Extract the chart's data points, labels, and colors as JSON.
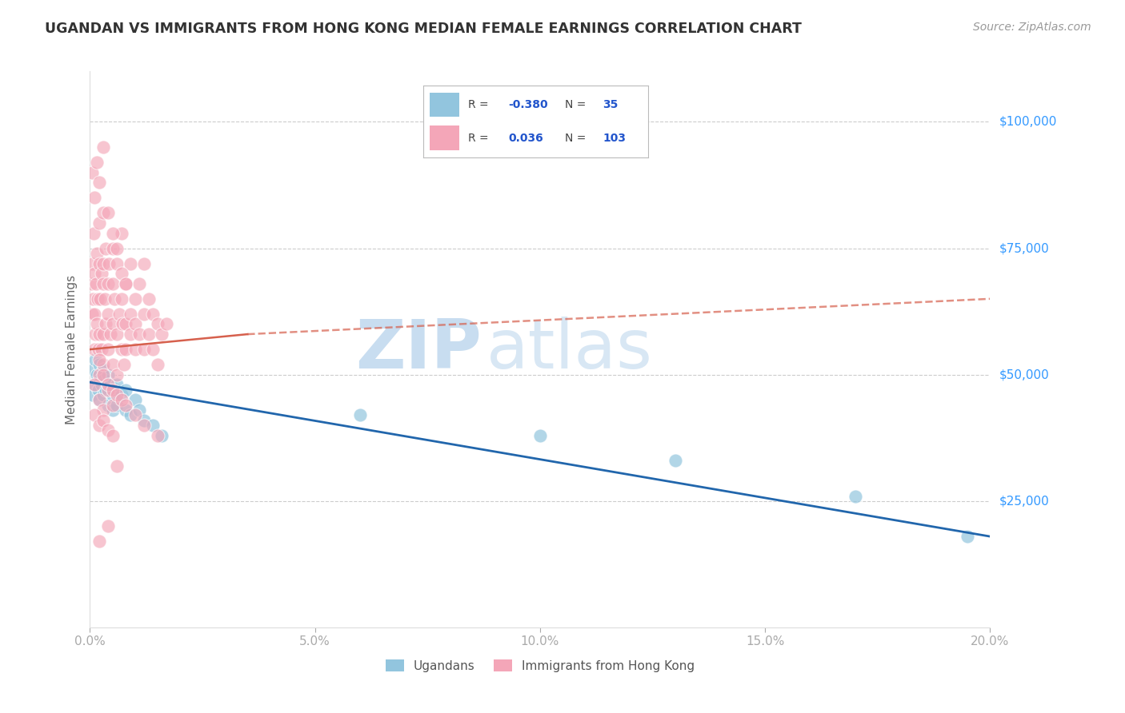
{
  "title": "UGANDAN VS IMMIGRANTS FROM HONG KONG MEDIAN FEMALE EARNINGS CORRELATION CHART",
  "source": "Source: ZipAtlas.com",
  "ylabel": "Median Female Earnings",
  "xlim": [
    0.0,
    0.2
  ],
  "ylim": [
    0,
    110000
  ],
  "legend_blue_R": "-0.380",
  "legend_blue_N": "35",
  "legend_pink_R": "0.036",
  "legend_pink_N": "103",
  "legend_label_blue": "Ugandans",
  "legend_label_pink": "Immigrants from Hong Kong",
  "blue_color": "#92c5de",
  "pink_color": "#f4a6b8",
  "blue_line_color": "#2166ac",
  "pink_line_color": "#d6604d",
  "watermark_zip": "ZIP",
  "watermark_atlas": "atlas",
  "blue_scatter_x": [
    0.0005,
    0.0008,
    0.001,
    0.0012,
    0.0015,
    0.0018,
    0.002,
    0.002,
    0.0022,
    0.0025,
    0.003,
    0.003,
    0.0032,
    0.0035,
    0.004,
    0.004,
    0.0045,
    0.005,
    0.005,
    0.006,
    0.006,
    0.007,
    0.008,
    0.008,
    0.009,
    0.01,
    0.011,
    0.012,
    0.014,
    0.016,
    0.06,
    0.1,
    0.13,
    0.17,
    0.195
  ],
  "blue_scatter_y": [
    46000,
    51000,
    48000,
    53000,
    50000,
    47000,
    52000,
    45000,
    49000,
    48000,
    51000,
    46000,
    49000,
    47000,
    50000,
    44000,
    48000,
    46000,
    43000,
    48000,
    44000,
    46000,
    43000,
    47000,
    42000,
    45000,
    43000,
    41000,
    40000,
    38000,
    42000,
    38000,
    33000,
    26000,
    18000
  ],
  "pink_scatter_x": [
    0.0003,
    0.0005,
    0.0005,
    0.0007,
    0.0008,
    0.001,
    0.001,
    0.001,
    0.0012,
    0.0013,
    0.0015,
    0.0015,
    0.0017,
    0.0018,
    0.002,
    0.002,
    0.002,
    0.002,
    0.0022,
    0.0025,
    0.0025,
    0.003,
    0.003,
    0.003,
    0.003,
    0.003,
    0.0033,
    0.0035,
    0.0035,
    0.004,
    0.004,
    0.004,
    0.0042,
    0.0045,
    0.005,
    0.005,
    0.005,
    0.005,
    0.0055,
    0.006,
    0.006,
    0.006,
    0.0065,
    0.007,
    0.007,
    0.007,
    0.0072,
    0.0075,
    0.008,
    0.008,
    0.008,
    0.009,
    0.009,
    0.009,
    0.01,
    0.01,
    0.01,
    0.011,
    0.011,
    0.012,
    0.012,
    0.012,
    0.013,
    0.013,
    0.014,
    0.014,
    0.015,
    0.015,
    0.016,
    0.017,
    0.0005,
    0.001,
    0.0015,
    0.002,
    0.003,
    0.004,
    0.005,
    0.006,
    0.007,
    0.008,
    0.001,
    0.002,
    0.003,
    0.004,
    0.005,
    0.001,
    0.002,
    0.003,
    0.004,
    0.005,
    0.002,
    0.003,
    0.004,
    0.005,
    0.006,
    0.007,
    0.008,
    0.01,
    0.012,
    0.015,
    0.002,
    0.004,
    0.006
  ],
  "pink_scatter_y": [
    68000,
    72000,
    62000,
    65000,
    78000,
    55000,
    62000,
    70000,
    58000,
    68000,
    74000,
    60000,
    65000,
    55000,
    80000,
    72000,
    58000,
    50000,
    65000,
    70000,
    55000,
    82000,
    68000,
    58000,
    72000,
    52000,
    65000,
    60000,
    75000,
    68000,
    55000,
    62000,
    72000,
    58000,
    75000,
    60000,
    52000,
    68000,
    65000,
    72000,
    58000,
    50000,
    62000,
    78000,
    65000,
    55000,
    60000,
    52000,
    68000,
    60000,
    55000,
    72000,
    62000,
    58000,
    65000,
    55000,
    60000,
    68000,
    58000,
    72000,
    62000,
    55000,
    65000,
    58000,
    62000,
    55000,
    60000,
    52000,
    58000,
    60000,
    90000,
    85000,
    92000,
    88000,
    95000,
    82000,
    78000,
    75000,
    70000,
    68000,
    48000,
    45000,
    43000,
    47000,
    44000,
    42000,
    40000,
    41000,
    39000,
    38000,
    53000,
    50000,
    48000,
    47000,
    46000,
    45000,
    44000,
    42000,
    40000,
    38000,
    17000,
    20000,
    32000
  ]
}
